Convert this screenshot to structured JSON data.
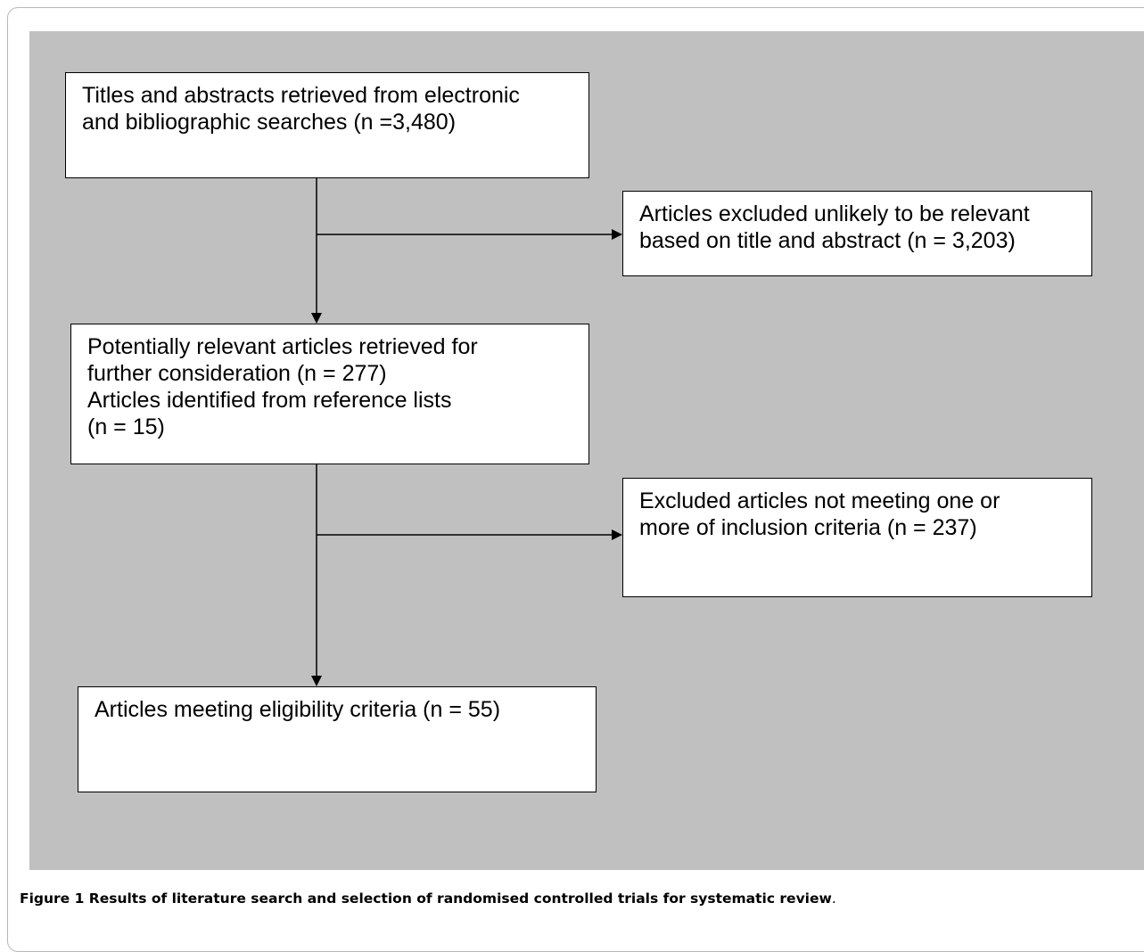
{
  "boxes": {
    "search": {
      "lines": [
        "Titles and abstracts retrieved from electronic",
        "and bibliographic searches (n =3,480)"
      ]
    },
    "excluded_title_abstract": {
      "lines": [
        "Articles excluded unlikely to be relevant",
        "based on title and abstract (n = 3,203)"
      ]
    },
    "potentially_relevant": {
      "lines": [
        "Potentially relevant articles retrieved for",
        "further consideration (n = 277)",
        "Articles identified from reference lists",
        "(n = 15)"
      ]
    },
    "excluded_criteria": {
      "lines": [
        "Excluded articles not meeting one or",
        "more of inclusion criteria (n = 237)"
      ]
    },
    "eligible": {
      "lines": [
        "Articles meeting eligibility criteria (n = 55)"
      ]
    }
  },
  "caption": {
    "label": "Figure 1",
    "text": " Results of literature search and selection of randomised controlled trials for systematic review",
    "end": "."
  },
  "colors": {
    "panel": "#c0c0c0",
    "box_fill": "#ffffff",
    "stroke": "#000000"
  }
}
